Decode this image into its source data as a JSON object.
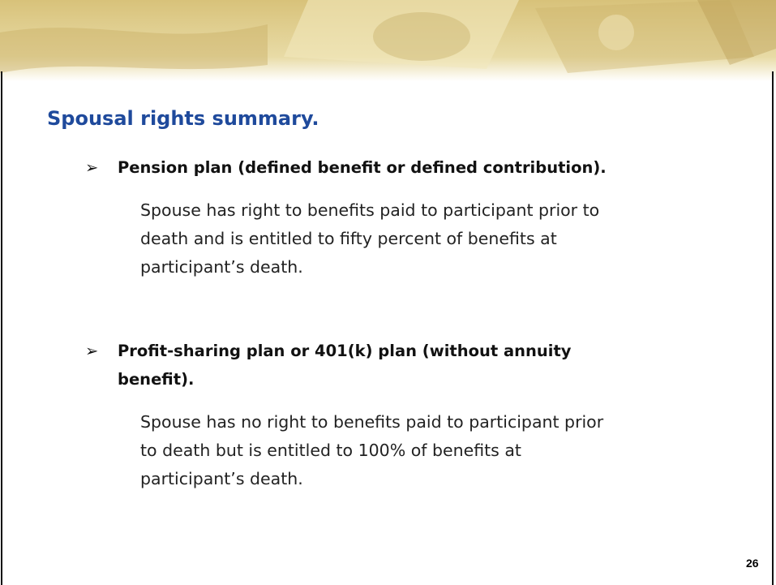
{
  "slide": {
    "title": "Spousal rights summary.",
    "items": [
      {
        "heading": "Pension plan (defined benefit or defined contribution).",
        "body": "Spouse has right to benefits paid to participant prior to death and is entitled to fifty percent of benefits at participant’s death."
      },
      {
        "heading": "Profit-sharing plan or 401(k) plan (without annuity benefit).",
        "body": "Spouse has no right to benefits paid to participant prior to death but is entitled to 100% of benefits at participant’s death."
      }
    ],
    "page_number": "26"
  }
}
